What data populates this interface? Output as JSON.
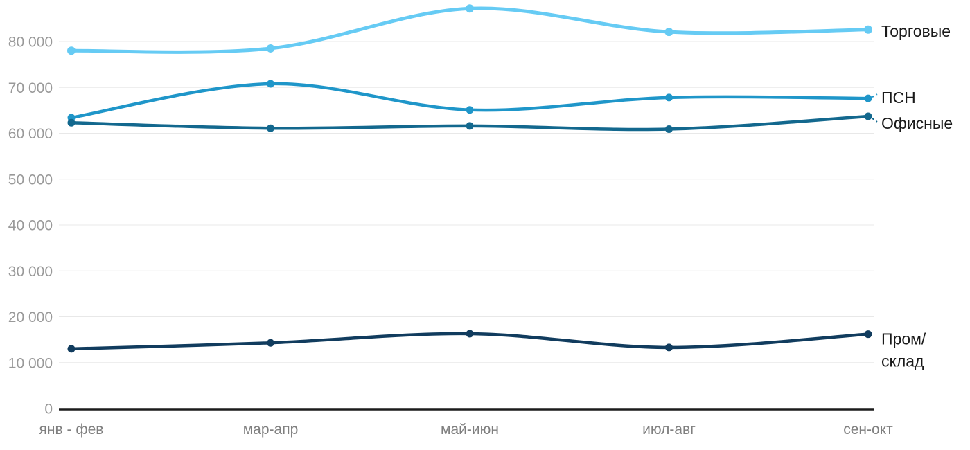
{
  "chart_data": {
    "type": "line",
    "title": "",
    "xlabel": "",
    "ylabel": "",
    "categories": [
      "янв - фев",
      "мар-апр",
      "май-июн",
      "июл-авг",
      "сен-окт"
    ],
    "series": [
      {
        "name": "Торговые",
        "color": "#66CBF4",
        "values": [
          78000,
          78500,
          87200,
          82100,
          82600
        ]
      },
      {
        "name": "ПСН",
        "color": "#1F96C9",
        "values": [
          63400,
          70800,
          65100,
          67800,
          67600
        ]
      },
      {
        "name": "Офисные",
        "color": "#13688E",
        "values": [
          62300,
          61100,
          61600,
          60900,
          63700
        ]
      },
      {
        "name": "Пром/склад",
        "color": "#113C5E",
        "values": [
          13000,
          14300,
          16300,
          13300,
          16200
        ]
      }
    ],
    "ylim": [
      0,
      88000
    ],
    "ytick_step": 10000,
    "ytick_labels": [
      "0",
      "10 000",
      "20 000",
      "30 000",
      "40 000",
      "50 000",
      "60 000",
      "70 000",
      "80 000"
    ],
    "grid": true,
    "legend_position": "right",
    "colors": {
      "grid": "#e8e8e8",
      "axis_line": "#1c1c1c",
      "y_tick_text": "#999999",
      "x_tick_text": "#7f7f7f",
      "legend_text": "#1a1a1a",
      "background": "#ffffff"
    }
  }
}
